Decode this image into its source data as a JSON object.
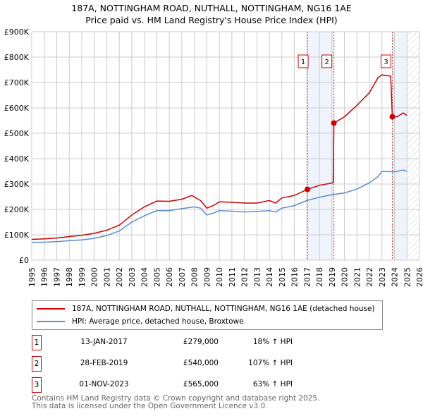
{
  "chart_data": {
    "type": "line",
    "title": "187A, NOTTINGHAM ROAD, NUTHALL, NOTTINGHAM, NG16 1AE",
    "subtitle": "Price paid vs. HM Land Registry's House Price Index (HPI)",
    "xlim": [
      1995,
      2026
    ],
    "ylim": [
      0,
      900000
    ],
    "x_ticks": [
      "1995",
      "1996",
      "1997",
      "1998",
      "1999",
      "2000",
      "2001",
      "2002",
      "2003",
      "2004",
      "2005",
      "2006",
      "2007",
      "2008",
      "2009",
      "2010",
      "2011",
      "2012",
      "2013",
      "2014",
      "2015",
      "2016",
      "2017",
      "2018",
      "2019",
      "2020",
      "2021",
      "2022",
      "2023",
      "2024",
      "2025",
      "2026"
    ],
    "y_ticks": [
      {
        "v": 0,
        "label": "£0"
      },
      {
        "v": 100000,
        "label": "£100K"
      },
      {
        "v": 200000,
        "label": "£200K"
      },
      {
        "v": 300000,
        "label": "£300K"
      },
      {
        "v": 400000,
        "label": "£400K"
      },
      {
        "v": 500000,
        "label": "£500K"
      },
      {
        "v": 600000,
        "label": "£600K"
      },
      {
        "v": 700000,
        "label": "£700K"
      },
      {
        "v": 800000,
        "label": "£800K"
      },
      {
        "v": 900000,
        "label": "£900K"
      }
    ],
    "grid": true,
    "series": [
      {
        "name": "187A, NOTTINGHAM ROAD, NUTHALL, NOTTINGHAM, NG16 1AE (detached house)",
        "color": "#cc0000",
        "x": [
          1995,
          1996,
          1997,
          1998,
          1999,
          2000,
          2001,
          2002,
          2003,
          2004,
          2005,
          2006,
          2007,
          2007.8,
          2008.5,
          2009,
          2009.5,
          2010,
          2011,
          2012,
          2013,
          2014,
          2014.5,
          2015,
          2016,
          2017.04,
          2018,
          2019.1,
          2019.16,
          2020,
          2021,
          2022,
          2022.7,
          2023,
          2023.7,
          2023.83,
          2024.2,
          2024.7,
          2025
        ],
        "y": [
          82000,
          84000,
          87000,
          93000,
          98000,
          106000,
          118000,
          138000,
          178000,
          210000,
          233000,
          232000,
          240000,
          255000,
          235000,
          205000,
          215000,
          230000,
          228000,
          225000,
          225000,
          235000,
          225000,
          245000,
          255000,
          279000,
          295000,
          305000,
          540000,
          565000,
          610000,
          660000,
          720000,
          730000,
          725000,
          565000,
          565000,
          580000,
          570000
        ]
      },
      {
        "name": "HPI: Average price, detached house, Broxtowe",
        "color": "#5b8bd0",
        "x": [
          1995,
          1996,
          1997,
          1998,
          1999,
          2000,
          2001,
          2002,
          2003,
          2004,
          2005,
          2006,
          2007,
          2008,
          2008.5,
          2009,
          2009.5,
          2010,
          2011,
          2012,
          2013,
          2014,
          2014.5,
          2015,
          2016,
          2017,
          2018,
          2019,
          2020,
          2021,
          2022,
          2022.7,
          2023,
          2024,
          2024.7,
          2025
        ],
        "y": [
          70000,
          71000,
          73000,
          77000,
          80000,
          86000,
          97000,
          115000,
          150000,
          175000,
          195000,
          195000,
          203000,
          210000,
          205000,
          178000,
          185000,
          195000,
          193000,
          190000,
          192000,
          195000,
          190000,
          205000,
          215000,
          235000,
          248000,
          258000,
          265000,
          280000,
          305000,
          330000,
          350000,
          348000,
          355000,
          350000
        ]
      }
    ],
    "sales": [
      {
        "num": "1",
        "x": 2017.04,
        "y": 279000,
        "date": "13-JAN-2017",
        "price": "£279,000",
        "pct": "18% ↑ HPI"
      },
      {
        "num": "2",
        "x": 2019.16,
        "y": 540000,
        "date": "28-FEB-2019",
        "price": "£540,000",
        "pct": "107% ↑ HPI"
      },
      {
        "num": "3",
        "x": 2023.83,
        "y": 565000,
        "date": "01-NOV-2023",
        "price": "£565,000",
        "pct": "63% ↑ HPI"
      }
    ],
    "shaded": [
      [
        2017.04,
        2019.16
      ],
      [
        2023.83,
        2025
      ]
    ],
    "hatched_from": 2025
  },
  "footer": {
    "line1": "Contains HM Land Registry data © Crown copyright and database right 2025.",
    "line2": "This data is licensed under the Open Government Licence v3.0."
  }
}
